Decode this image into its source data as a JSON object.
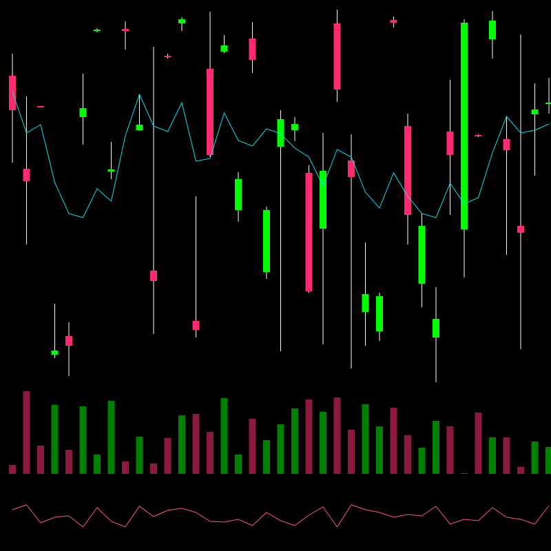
{
  "chart_data": {
    "type": "candlestick",
    "open": [
      450,
      315,
      406,
      45,
      72,
      390,
      515,
      311,
      518,
      371,
      167,
      479,
      526,
      94,
      460,
      485,
      255,
      504,
      165,
      347,
      371,
      309,
      228,
      526,
      327,
      107,
      79,
      531,
      377,
      148,
      70,
      369,
      227,
      364,
      503,
      358,
      232,
      394,
      410
    ],
    "high": [
      482,
      420,
      406,
      119,
      92,
      453,
      519,
      354,
      529,
      423,
      492,
      482,
      535,
      275,
      543,
      509,
      310,
      528,
      260,
      400,
      390,
      320,
      367,
      546,
      365,
      208,
      135,
      536,
      395,
      250,
      143,
      444,
      532,
      365,
      544,
      390,
      510,
      439,
      447
    ],
    "low": [
      324,
      205,
      405,
      40,
      14,
      350,
      513,
      300,
      488,
      370,
      75,
      475,
      515,
      70,
      332,
      483,
      238,
      454,
      155,
      50,
      355,
      135,
      60,
      412,
      25,
      58,
      65,
      520,
      205,
      114,
      5,
      248,
      157,
      361,
      475,
      190,
      53,
      305,
      395
    ],
    "close": [
      400,
      297,
      405,
      51,
      58,
      403,
      517,
      314,
      515,
      379,
      152,
      477,
      532,
      81,
      335,
      494,
      300,
      473,
      255,
      387,
      380,
      137,
      312,
      430,
      303,
      133,
      130,
      527,
      248,
      232,
      97,
      335,
      527,
      363,
      530,
      342,
      222,
      401,
      411
    ],
    "line": [
      427,
      367,
      379,
      295,
      250,
      244,
      286,
      268,
      363,
      423,
      377,
      369,
      411,
      326,
      330,
      396,
      356,
      348,
      373,
      366,
      345,
      332,
      290,
      343,
      332,
      281,
      258,
      309,
      275,
      250,
      244,
      294,
      264,
      273,
      338,
      391,
      367,
      371,
      380
    ],
    "volume": [
      13,
      120,
      41,
      100,
      35,
      98,
      28,
      106,
      18,
      54,
      15,
      52,
      85,
      87,
      61,
      110,
      28,
      80,
      49,
      72,
      95,
      108,
      90,
      111,
      64,
      101,
      69,
      96,
      56,
      38,
      77,
      69,
      1,
      89,
      53,
      53,
      10,
      47,
      39
    ],
    "indicator": [
      40,
      47,
      21,
      29,
      31,
      15,
      43,
      23,
      15,
      45,
      30,
      39,
      42,
      36,
      23,
      22,
      26,
      17,
      36,
      24,
      17,
      32,
      44,
      15,
      47,
      40,
      36,
      29,
      33,
      31,
      45,
      19,
      26,
      24,
      43,
      29,
      26,
      19,
      46
    ],
    "ylim": [
      0,
      560
    ],
    "volume_ylim": [
      0,
      128
    ],
    "indicator_ylim": [
      0,
      60
    ],
    "up_color": "#00ff00",
    "down_color": "#ff2a6d",
    "volume_up_color": "#008000",
    "volume_down_color": "#8b1a3c",
    "line_color": "#00e5ee",
    "indicator_color": "#ff4fa0",
    "wick_color": "#ffffff"
  }
}
